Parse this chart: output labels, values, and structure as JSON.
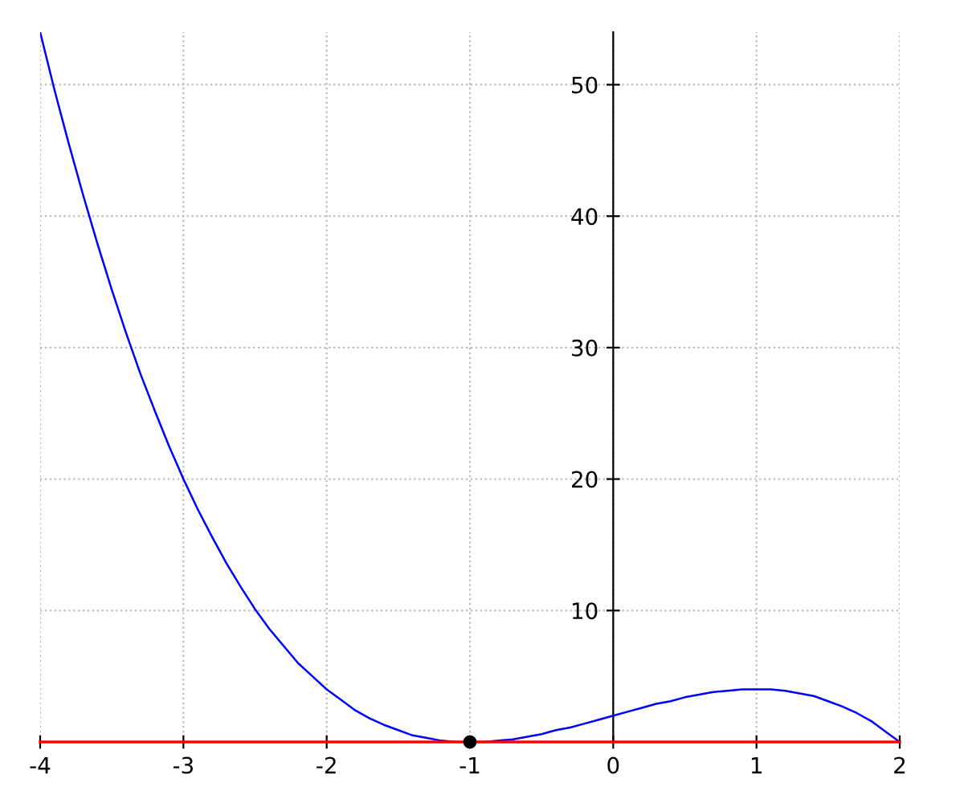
{
  "chart_data": {
    "type": "line",
    "series": [
      {
        "color": "#0000ff",
        "x": [
          -4,
          -3.9,
          -3.8,
          -3.7,
          -3.6,
          -3.5,
          -3.4,
          -3.3,
          -3.2,
          -3.1,
          -3,
          -2.9,
          -2.8,
          -2.7,
          -2.6,
          -2.5,
          -2.4,
          -2.3,
          -2.2,
          -2.1,
          -2,
          -1.9,
          -1.8,
          -1.7,
          -1.6,
          -1.5,
          -1.4,
          -1.3,
          -1.2,
          -1.1,
          -1,
          -0.9,
          -0.8,
          -0.7,
          -0.6,
          -0.5,
          -0.4,
          -0.3,
          -0.2,
          -0.1,
          0,
          0.1,
          0.2,
          0.3,
          0.4,
          0.5,
          0.6,
          0.7,
          0.8,
          0.9,
          1,
          1.1,
          1.2,
          1.3,
          1.4,
          1.5,
          1.6,
          1.7,
          1.8,
          1.9,
          2
        ],
        "values": [
          54,
          49.6,
          45.5,
          41.6,
          37.9,
          34.4,
          31.1,
          28,
          25.2,
          22.5,
          20,
          17.7,
          15.6,
          13.6,
          11.8,
          10.1,
          8.6,
          7.3,
          6,
          5,
          4,
          3.2,
          2.4,
          1.8,
          1.3,
          0.9,
          0.5,
          0.3,
          0.1,
          0,
          0,
          0,
          0.1,
          0.2,
          0.4,
          0.6,
          0.9,
          1.1,
          1.4,
          1.7,
          2,
          2.3,
          2.6,
          2.9,
          3.1,
          3.4,
          3.6,
          3.8,
          3.9,
          4,
          4,
          4,
          3.9,
          3.7,
          3.5,
          3.1,
          2.7,
          2.2,
          1.6,
          0.8,
          0
        ]
      },
      {
        "type": "scatter",
        "color": "#000000",
        "x": [
          -1
        ],
        "values": [
          0
        ],
        "marker": "circle"
      }
    ],
    "ref_lines": [
      {
        "axis": "y",
        "value": 0,
        "color": "#ff0000"
      }
    ],
    "xlim": [
      -4,
      2
    ],
    "ylim": [
      0,
      54
    ],
    "xticks": [
      -4,
      -3,
      -2,
      -1,
      0,
      1,
      2
    ],
    "yticks": [
      10,
      20,
      30,
      40,
      50
    ],
    "grid": true,
    "legend": false
  }
}
